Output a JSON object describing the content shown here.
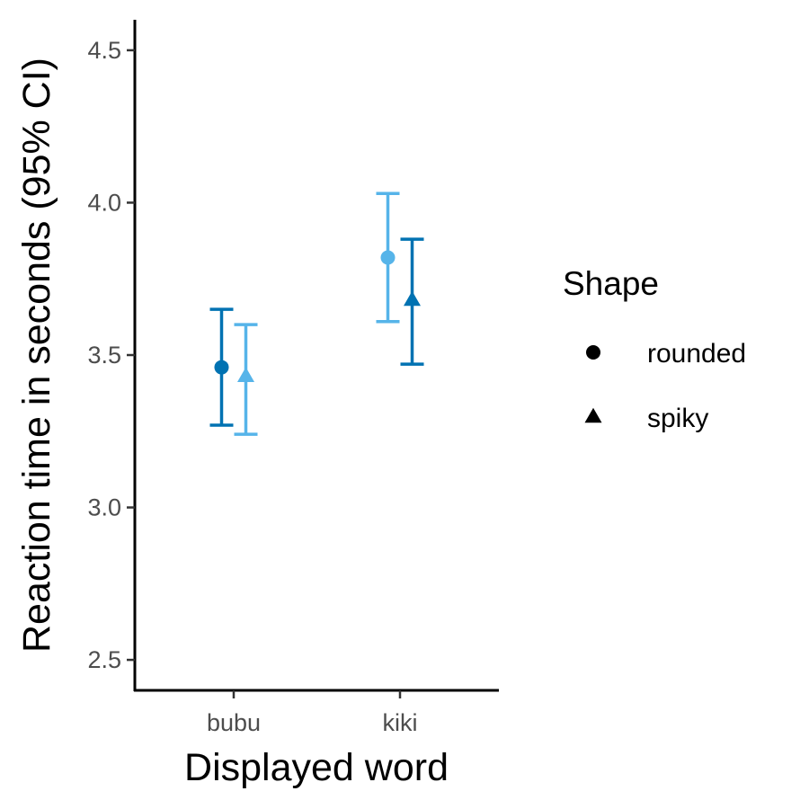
{
  "chart_data": {
    "type": "scatter",
    "xlabel": "Displayed word",
    "ylabel": "Reaction time in seconds (95% CI)",
    "categories": [
      "bubu",
      "kiki"
    ],
    "ylim": [
      2.4,
      4.6
    ],
    "yticks": [
      2.5,
      3.0,
      3.5,
      4.0,
      4.5
    ],
    "ytick_labels": [
      "2.5",
      "3.0",
      "3.5",
      "4.0",
      "4.5"
    ],
    "grid": false,
    "legend": {
      "title": "Shape",
      "placement": "right",
      "entries": [
        {
          "label": "rounded",
          "marker": "circle"
        },
        {
          "label": "spiky",
          "marker": "triangle"
        }
      ]
    },
    "series": [
      {
        "name": "rounded",
        "marker": "circle",
        "points": [
          {
            "category": "bubu",
            "y": 3.46,
            "ci_low": 3.27,
            "ci_high": 3.65,
            "color": "#0072b2"
          },
          {
            "category": "kiki",
            "y": 3.82,
            "ci_low": 3.61,
            "ci_high": 4.03,
            "color": "#56b4e9"
          }
        ]
      },
      {
        "name": "spiky",
        "marker": "triangle",
        "points": [
          {
            "category": "bubu",
            "y": 3.43,
            "ci_low": 3.24,
            "ci_high": 3.6,
            "color": "#56b4e9"
          },
          {
            "category": "kiki",
            "y": 3.68,
            "ci_low": 3.47,
            "ci_high": 3.88,
            "color": "#0072b2"
          }
        ]
      }
    ]
  }
}
